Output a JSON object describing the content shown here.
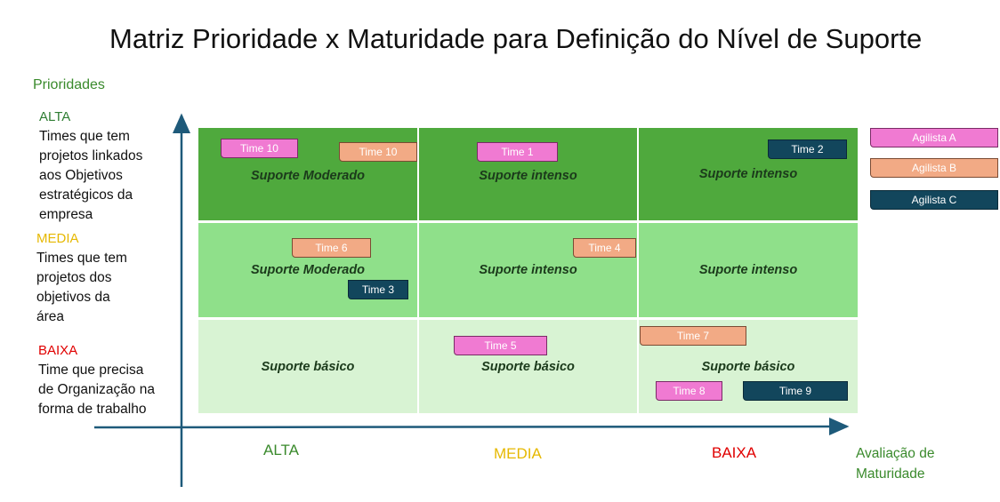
{
  "title": "Matriz Prioridade x Maturidade para Definição do Nível de Suporte",
  "y_axis_title": "Prioridades",
  "x_axis_title": "Avaliação de\nMaturidade",
  "priority_levels": [
    {
      "name": "ALTA",
      "color": "#2e7d32",
      "description": "Times que tem\nprojetos linkados\naos Objetivos\nestratégicos da\nempresa"
    },
    {
      "name": "MEDIA",
      "color": "#e6b800",
      "description": "Times que tem\nprojetos dos\nobjetivos da\nárea"
    },
    {
      "name": "BAIXA",
      "color": "#e00000",
      "description": "Time que precisa\nde Organização na\nforma de trabalho"
    }
  ],
  "maturity_levels": [
    {
      "name": "ALTA",
      "color": "#3a8a2c"
    },
    {
      "name": "MEDIA",
      "color": "#e6b800"
    },
    {
      "name": "BAIXA",
      "color": "#e00000"
    }
  ],
  "matrix": [
    [
      "Suporte Moderado",
      "Suporte intenso",
      "Suporte intenso"
    ],
    [
      "Suporte Moderado",
      "Suporte intenso",
      "Suporte intenso"
    ],
    [
      "Suporte básico",
      "Suporte básico",
      "Suporte básico"
    ]
  ],
  "teams": [
    {
      "label": "Time 10",
      "agilista": "A"
    },
    {
      "label": "Time 10",
      "agilista": "B"
    },
    {
      "label": "Time 1",
      "agilista": "A"
    },
    {
      "label": "Time 2",
      "agilista": "C"
    },
    {
      "label": "Time 6",
      "agilista": "B"
    },
    {
      "label": "Time 3",
      "agilista": "C"
    },
    {
      "label": "Time 4",
      "agilista": "B"
    },
    {
      "label": "Time 5",
      "agilista": "A"
    },
    {
      "label": "Time 7",
      "agilista": "B"
    },
    {
      "label": "Time 8",
      "agilista": "A"
    },
    {
      "label": "Time 9",
      "agilista": "C"
    }
  ],
  "legend": [
    {
      "label": "Agilista A",
      "color": "#f07ad2"
    },
    {
      "label": "Agilista B",
      "color": "#f2aa85"
    },
    {
      "label": "Agilista C",
      "color": "#12465c"
    }
  ],
  "axis_color": "#1e5a7a"
}
